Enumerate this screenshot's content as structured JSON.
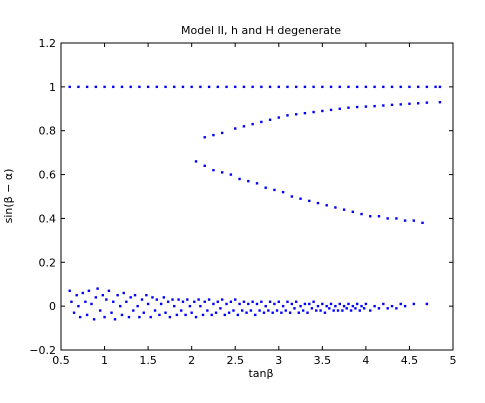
{
  "chart_data": {
    "type": "scatter",
    "title": "Model II, h and H degenerate",
    "xlabel": "tanβ",
    "ylabel": "sin(β − α)",
    "xlim": [
      0.5,
      5
    ],
    "ylim": [
      -0.2,
      1.2
    ],
    "xticks": [
      0.5,
      1,
      1.5,
      2,
      2.5,
      3,
      3.5,
      4,
      4.5,
      5
    ],
    "yticks": [
      -0.2,
      0,
      0.2,
      0.4,
      0.6,
      0.8,
      1,
      1.2
    ],
    "xtick_labels": [
      "0.5",
      "1",
      "1.5",
      "2",
      "2.5",
      "3",
      "3.5",
      "4",
      "4.5",
      "5"
    ],
    "ytick_labels": [
      "−0.2",
      "0",
      "0.2",
      "0.4",
      "0.6",
      "0.8",
      "1",
      "1.2"
    ],
    "grid": false,
    "marker_color": "#0000ff",
    "series": [
      {
        "points": [
          [
            0.6,
            1.0
          ],
          [
            0.7,
            1.0
          ],
          [
            0.8,
            1.0
          ],
          [
            0.9,
            1.0
          ],
          [
            1.0,
            1.0
          ],
          [
            1.1,
            1.0
          ],
          [
            1.2,
            1.0
          ],
          [
            1.3,
            1.0
          ],
          [
            1.4,
            1.0
          ],
          [
            1.5,
            1.0
          ],
          [
            1.6,
            1.0
          ],
          [
            1.7,
            1.0
          ],
          [
            1.8,
            1.0
          ],
          [
            1.9,
            1.0
          ],
          [
            2.0,
            1.0
          ],
          [
            2.1,
            1.0
          ],
          [
            2.2,
            1.0
          ],
          [
            2.3,
            1.0
          ],
          [
            2.4,
            1.0
          ],
          [
            2.5,
            1.0
          ],
          [
            2.6,
            1.0
          ],
          [
            2.7,
            1.0
          ],
          [
            2.8,
            1.0
          ],
          [
            2.9,
            1.0
          ],
          [
            3.0,
            1.0
          ],
          [
            3.1,
            1.0
          ],
          [
            3.2,
            1.0
          ],
          [
            3.3,
            1.0
          ],
          [
            3.4,
            1.0
          ],
          [
            3.5,
            1.0
          ],
          [
            3.6,
            1.0
          ],
          [
            3.7,
            1.0
          ],
          [
            3.8,
            1.0
          ],
          [
            3.9,
            1.0
          ],
          [
            4.0,
            1.0
          ],
          [
            4.1,
            1.0
          ],
          [
            4.2,
            1.0
          ],
          [
            4.3,
            1.0
          ],
          [
            4.4,
            1.0
          ],
          [
            4.5,
            1.0
          ],
          [
            4.6,
            1.0
          ],
          [
            4.7,
            1.0
          ],
          [
            4.8,
            1.0
          ],
          [
            4.85,
            1.0
          ]
        ]
      },
      {
        "points": [
          [
            2.15,
            0.77
          ],
          [
            2.25,
            0.78
          ],
          [
            2.35,
            0.79
          ],
          [
            2.5,
            0.81
          ],
          [
            2.6,
            0.82
          ],
          [
            2.7,
            0.83
          ],
          [
            2.8,
            0.84
          ],
          [
            2.9,
            0.85
          ],
          [
            3.0,
            0.86
          ],
          [
            3.1,
            0.87
          ],
          [
            3.2,
            0.875
          ],
          [
            3.3,
            0.88
          ],
          [
            3.4,
            0.885
          ],
          [
            3.5,
            0.89
          ],
          [
            3.6,
            0.895
          ],
          [
            3.7,
            0.9
          ],
          [
            3.8,
            0.905
          ],
          [
            3.9,
            0.908
          ],
          [
            4.0,
            0.91
          ],
          [
            4.1,
            0.912
          ],
          [
            4.2,
            0.915
          ],
          [
            4.3,
            0.918
          ],
          [
            4.4,
            0.92
          ],
          [
            4.5,
            0.923
          ],
          [
            4.6,
            0.925
          ],
          [
            4.7,
            0.928
          ],
          [
            4.85,
            0.93
          ]
        ]
      },
      {
        "points": [
          [
            2.05,
            0.66
          ],
          [
            2.15,
            0.64
          ],
          [
            2.25,
            0.62
          ],
          [
            2.35,
            0.61
          ],
          [
            2.45,
            0.6
          ],
          [
            2.55,
            0.58
          ],
          [
            2.65,
            0.57
          ],
          [
            2.75,
            0.56
          ],
          [
            2.85,
            0.54
          ],
          [
            2.95,
            0.53
          ],
          [
            3.05,
            0.52
          ],
          [
            3.15,
            0.5
          ],
          [
            3.25,
            0.49
          ],
          [
            3.35,
            0.48
          ],
          [
            3.45,
            0.47
          ],
          [
            3.55,
            0.46
          ],
          [
            3.65,
            0.45
          ],
          [
            3.75,
            0.44
          ],
          [
            3.85,
            0.43
          ],
          [
            3.95,
            0.42
          ],
          [
            4.05,
            0.41
          ],
          [
            4.15,
            0.41
          ],
          [
            4.25,
            0.4
          ],
          [
            4.35,
            0.4
          ],
          [
            4.45,
            0.39
          ],
          [
            4.55,
            0.39
          ],
          [
            4.65,
            0.38
          ]
        ]
      },
      {
        "points": [
          [
            0.6,
            0.07
          ],
          [
            0.62,
            0.02
          ],
          [
            0.65,
            -0.03
          ],
          [
            0.68,
            0.05
          ],
          [
            0.7,
            0.0
          ],
          [
            0.72,
            -0.05
          ],
          [
            0.75,
            0.06
          ],
          [
            0.78,
            0.02
          ],
          [
            0.8,
            -0.04
          ],
          [
            0.82,
            0.07
          ],
          [
            0.85,
            0.01
          ],
          [
            0.88,
            -0.06
          ],
          [
            0.9,
            0.04
          ],
          [
            0.92,
            0.08
          ],
          [
            0.95,
            -0.02
          ],
          [
            0.98,
            0.05
          ],
          [
            1.0,
            -0.05
          ],
          [
            1.02,
            0.03
          ],
          [
            1.05,
            0.07
          ],
          [
            1.08,
            -0.03
          ],
          [
            1.1,
            0.02
          ],
          [
            1.12,
            -0.06
          ],
          [
            1.15,
            0.05
          ],
          [
            1.18,
            0.0
          ],
          [
            1.2,
            -0.04
          ],
          [
            1.22,
            0.06
          ],
          [
            1.25,
            0.02
          ],
          [
            1.28,
            -0.05
          ],
          [
            1.3,
            0.04
          ],
          [
            1.33,
            -0.02
          ],
          [
            1.35,
            0.05
          ],
          [
            1.38,
            0.0
          ],
          [
            1.4,
            -0.05
          ],
          [
            1.43,
            0.03
          ],
          [
            1.45,
            -0.03
          ],
          [
            1.48,
            0.05
          ],
          [
            1.5,
            0.01
          ],
          [
            1.53,
            -0.05
          ],
          [
            1.55,
            0.04
          ],
          [
            1.58,
            -0.02
          ],
          [
            1.6,
            0.03
          ],
          [
            1.63,
            -0.04
          ],
          [
            1.65,
            0.01
          ],
          [
            1.68,
            0.04
          ],
          [
            1.7,
            -0.03
          ],
          [
            1.73,
            0.02
          ],
          [
            1.75,
            -0.05
          ],
          [
            1.78,
            0.03
          ],
          [
            1.8,
            0.0
          ],
          [
            1.83,
            -0.04
          ],
          [
            1.85,
            0.03
          ],
          [
            1.88,
            -0.02
          ],
          [
            1.9,
            0.02
          ],
          [
            1.93,
            -0.04
          ],
          [
            1.95,
            0.03
          ],
          [
            1.98,
            0.0
          ],
          [
            2.0,
            -0.03
          ],
          [
            2.03,
            0.02
          ],
          [
            2.05,
            -0.05
          ],
          [
            2.08,
            0.03
          ],
          [
            2.1,
            0.0
          ],
          [
            2.13,
            -0.04
          ],
          [
            2.15,
            0.02
          ],
          [
            2.18,
            -0.02
          ],
          [
            2.2,
            0.03
          ],
          [
            2.23,
            -0.04
          ],
          [
            2.25,
            0.01
          ],
          [
            2.28,
            -0.03
          ],
          [
            2.3,
            0.02
          ],
          [
            2.33,
            -0.01
          ],
          [
            2.35,
            0.03
          ],
          [
            2.38,
            -0.04
          ],
          [
            2.4,
            0.01
          ],
          [
            2.43,
            -0.03
          ],
          [
            2.45,
            0.02
          ],
          [
            2.48,
            -0.02
          ],
          [
            2.5,
            0.03
          ],
          [
            2.53,
            -0.04
          ],
          [
            2.55,
            0.01
          ],
          [
            2.58,
            -0.02
          ],
          [
            2.6,
            0.02
          ],
          [
            2.63,
            -0.03
          ],
          [
            2.65,
            0.01
          ],
          [
            2.68,
            -0.02
          ],
          [
            2.7,
            0.02
          ],
          [
            2.73,
            -0.04
          ],
          [
            2.75,
            0.01
          ],
          [
            2.78,
            -0.02
          ],
          [
            2.8,
            0.02
          ],
          [
            2.83,
            -0.03
          ],
          [
            2.85,
            0.0
          ],
          [
            2.88,
            -0.02
          ],
          [
            2.9,
            0.02
          ],
          [
            2.93,
            -0.03
          ],
          [
            2.95,
            0.01
          ],
          [
            2.98,
            -0.02
          ],
          [
            3.0,
            0.02
          ],
          [
            3.03,
            -0.03
          ],
          [
            3.05,
            0.0
          ],
          [
            3.08,
            -0.02
          ],
          [
            3.1,
            0.02
          ],
          [
            3.13,
            -0.03
          ],
          [
            3.15,
            0.01
          ],
          [
            3.18,
            -0.01
          ],
          [
            3.2,
            0.02
          ],
          [
            3.23,
            -0.03
          ],
          [
            3.25,
            0.0
          ],
          [
            3.28,
            -0.02
          ],
          [
            3.3,
            0.01
          ],
          [
            3.33,
            -0.03
          ],
          [
            3.35,
            0.01
          ],
          [
            3.38,
            -0.01
          ],
          [
            3.4,
            0.02
          ],
          [
            3.43,
            -0.02
          ],
          [
            3.45,
            0.0
          ],
          [
            3.48,
            -0.02
          ],
          [
            3.5,
            0.01
          ],
          [
            3.53,
            -0.03
          ],
          [
            3.55,
            0.0
          ],
          [
            3.58,
            -0.01
          ],
          [
            3.6,
            0.01
          ],
          [
            3.63,
            -0.02
          ],
          [
            3.65,
            0.0
          ],
          [
            3.68,
            -0.02
          ],
          [
            3.7,
            0.01
          ],
          [
            3.73,
            -0.02
          ],
          [
            3.75,
            0.0
          ],
          [
            3.78,
            -0.01
          ],
          [
            3.8,
            0.01
          ],
          [
            3.83,
            -0.02
          ],
          [
            3.85,
            0.0
          ],
          [
            3.88,
            -0.01
          ],
          [
            3.9,
            0.01
          ],
          [
            3.93,
            -0.02
          ],
          [
            3.95,
            0.0
          ],
          [
            3.98,
            -0.01
          ],
          [
            4.0,
            0.01
          ],
          [
            4.05,
            -0.02
          ],
          [
            4.1,
            0.0
          ],
          [
            4.15,
            -0.01
          ],
          [
            4.2,
            0.01
          ],
          [
            4.25,
            -0.01
          ],
          [
            4.3,
            0.0
          ],
          [
            4.35,
            -0.01
          ],
          [
            4.4,
            0.01
          ],
          [
            4.45,
            0.0
          ],
          [
            4.55,
            0.01
          ],
          [
            4.7,
            0.01
          ]
        ]
      }
    ]
  }
}
